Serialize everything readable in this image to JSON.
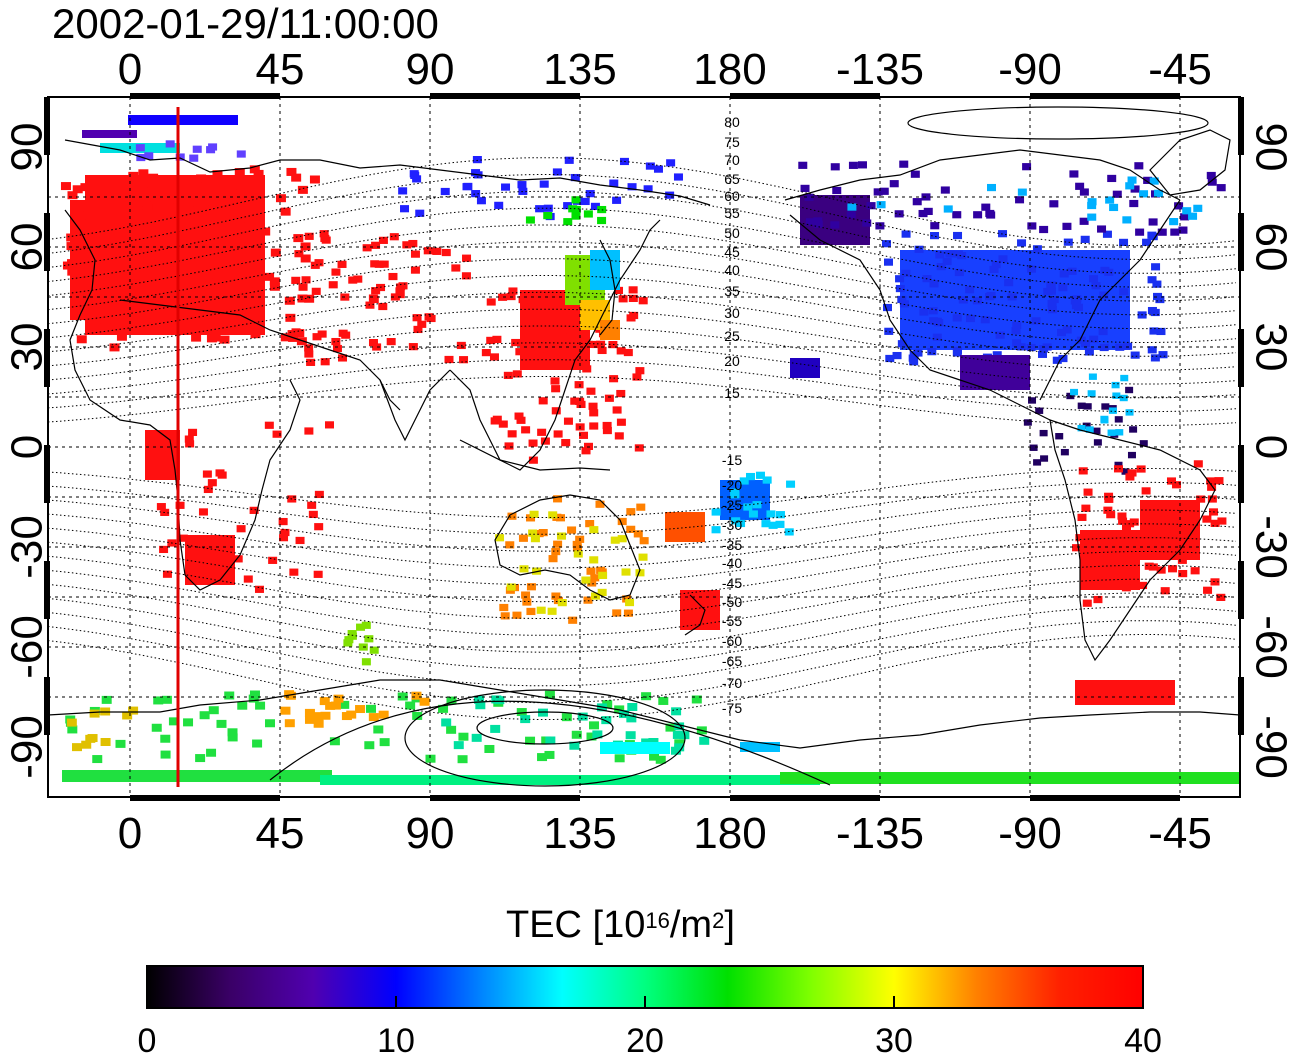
{
  "title": "2002-01-29/11:00:00",
  "map": {
    "lon_ticks_top": [
      "0",
      "45",
      "90",
      "135",
      "180",
      "-135",
      "-90",
      "-45"
    ],
    "lon_ticks_bottom": [
      "0",
      "45",
      "90",
      "135",
      "180",
      "-135",
      "-90",
      "-45"
    ],
    "lat_ticks_left": [
      "90",
      "60",
      "30",
      "0",
      "-30",
      "-60",
      "-90"
    ],
    "lat_ticks_right": [
      "90",
      "60",
      "30",
      "0",
      "-30",
      "-60",
      "-90"
    ],
    "contour_labels_north": [
      "80",
      "75",
      "70",
      "65",
      "60",
      "55",
      "50",
      "45",
      "40",
      "35",
      "30",
      "25",
      "20",
      "15"
    ],
    "contour_labels_south": [
      "-15",
      "-20",
      "-25",
      "-30",
      "-35",
      "-40",
      "-45",
      "-50",
      "-55",
      "-60",
      "-65",
      "-70",
      "-75"
    ],
    "terminator_color": "#e00000"
  },
  "colorbar": {
    "title_main": "TEC  [10",
    "title_exp": "16",
    "title_unit": "/m",
    "title_exp2": "2",
    "title_close": "]",
    "min": 0,
    "max": 40,
    "tick_labels": [
      "0",
      "10",
      "20",
      "30",
      "40"
    ],
    "colors": [
      "#000000",
      "#3a0066",
      "#5000b0",
      "#0000ff",
      "#0080ff",
      "#00ffff",
      "#00ff80",
      "#00e000",
      "#80ff00",
      "#ffff00",
      "#ff8000",
      "#ff2000",
      "#ff0000"
    ]
  }
}
